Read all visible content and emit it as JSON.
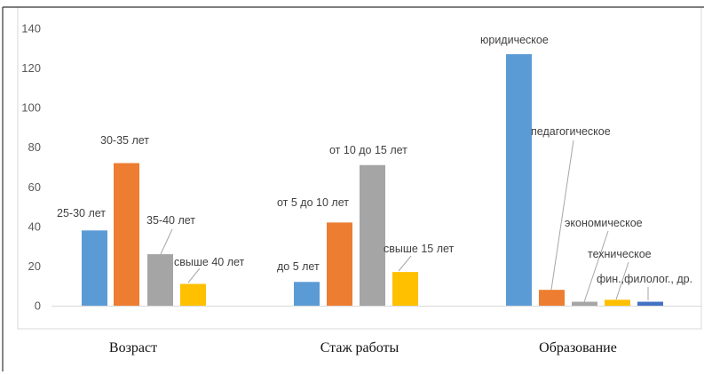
{
  "chart_data": {
    "type": "bar",
    "title": "",
    "xlabel": "",
    "ylabel": "",
    "ylim": [
      0,
      140
    ],
    "yticks": [
      0,
      20,
      40,
      60,
      80,
      100,
      120,
      140
    ],
    "grid": false,
    "legend": "none",
    "groups": [
      {
        "name": "Возраст",
        "bars": [
          {
            "label": "25-30 лет",
            "value": 38,
            "color": "#5b9bd5"
          },
          {
            "label": "30-35 лет",
            "value": 72,
            "color": "#ed7d31"
          },
          {
            "label": "35-40 лет",
            "value": 26,
            "color": "#a5a5a5"
          },
          {
            "label": "свыше 40 лет",
            "value": 11,
            "color": "#ffc000"
          }
        ]
      },
      {
        "name": "Стаж работы",
        "bars": [
          {
            "label": "до 5 лет",
            "value": 12,
            "color": "#5b9bd5"
          },
          {
            "label": "от 5 до 10 лет",
            "value": 42,
            "color": "#ed7d31"
          },
          {
            "label": "от 10 до 15 лет",
            "value": 71,
            "color": "#a5a5a5"
          },
          {
            "label": "свыше 15 лет",
            "value": 17,
            "color": "#ffc000"
          }
        ]
      },
      {
        "name": "Образование",
        "bars": [
          {
            "label": "юридическое",
            "value": 127,
            "color": "#5b9bd5"
          },
          {
            "label": "педагогическое",
            "value": 8,
            "color": "#ed7d31"
          },
          {
            "label": "экономическое",
            "value": 2,
            "color": "#a5a5a5"
          },
          {
            "label": "техническое",
            "value": 3,
            "color": "#ffc000"
          },
          {
            "label": "фин.,филолог., др.",
            "value": 2,
            "color": "#4472c4"
          }
        ]
      }
    ]
  }
}
